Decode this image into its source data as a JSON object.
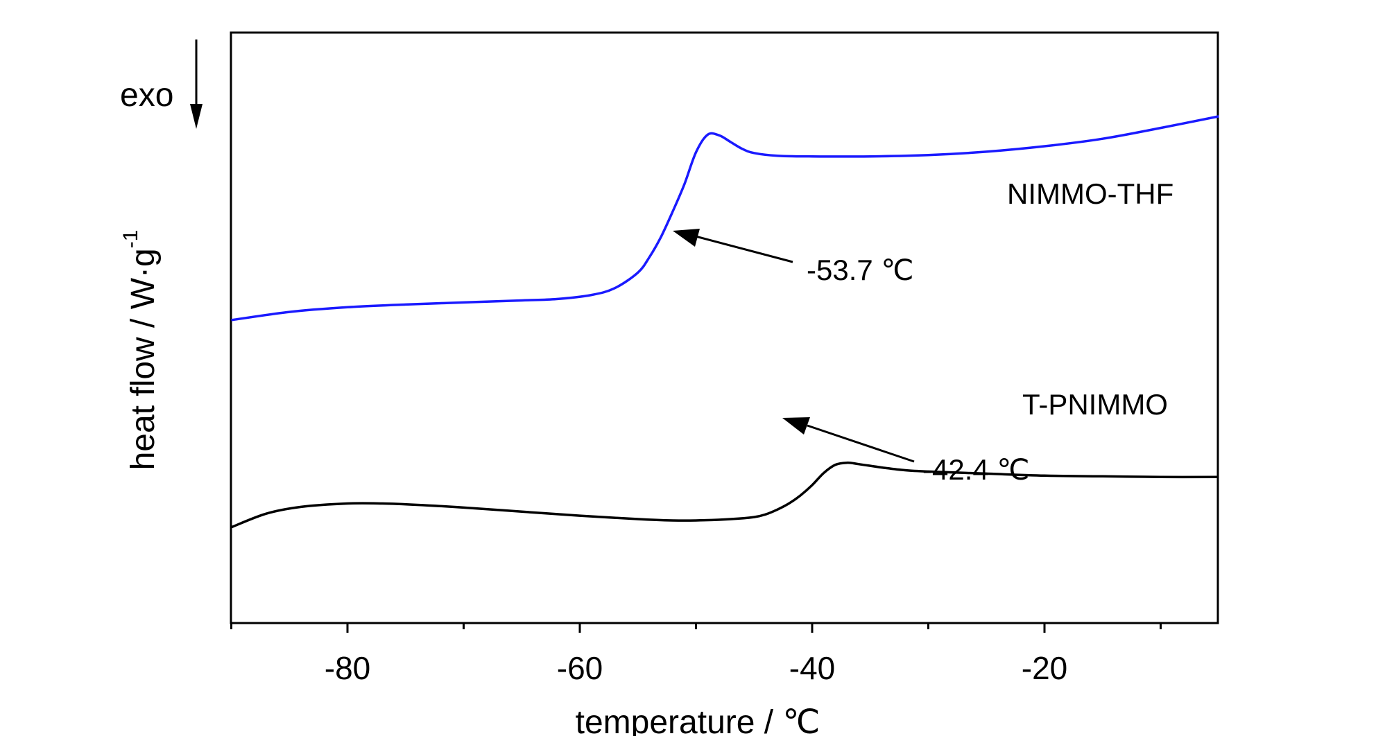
{
  "chart_data": {
    "type": "line",
    "xlabel": "temperature / ℃",
    "ylabel": "heat flow / W·g",
    "ylabel_superscript": "-1",
    "xlim": [
      -90,
      -5
    ],
    "x_ticks": [
      -80,
      -60,
      -40,
      -20
    ],
    "x_tick_labels": [
      "-80",
      "-60",
      "-40",
      "-20"
    ],
    "y_ticks_shown": false,
    "grid": false,
    "direction_label": "exo",
    "series": [
      {
        "name": "NIMMO-THF",
        "color": "#1a1aff",
        "points": [
          [
            -90,
            0.95
          ],
          [
            -85,
            1.07
          ],
          [
            -80,
            1.14
          ],
          [
            -75,
            1.18
          ],
          [
            -70,
            1.21
          ],
          [
            -65,
            1.24
          ],
          [
            -62,
            1.26
          ],
          [
            -59,
            1.32
          ],
          [
            -57,
            1.42
          ],
          [
            -55,
            1.65
          ],
          [
            -54,
            1.88
          ],
          [
            -53,
            2.18
          ],
          [
            -52,
            2.55
          ],
          [
            -51,
            2.95
          ],
          [
            -50,
            3.42
          ],
          [
            -49,
            3.68
          ],
          [
            -48,
            3.67
          ],
          [
            -47,
            3.57
          ],
          [
            -46,
            3.47
          ],
          [
            -45,
            3.41
          ],
          [
            -43,
            3.37
          ],
          [
            -40,
            3.36
          ],
          [
            -35,
            3.36
          ],
          [
            -30,
            3.38
          ],
          [
            -25,
            3.43
          ],
          [
            -20,
            3.51
          ],
          [
            -15,
            3.62
          ],
          [
            -10,
            3.78
          ],
          [
            -5,
            3.95
          ]
        ]
      },
      {
        "name": "T-PNIMMO",
        "color": "#000000",
        "points": [
          [
            -90,
            -2.1
          ],
          [
            -87,
            -1.9
          ],
          [
            -84,
            -1.8
          ],
          [
            -80,
            -1.75
          ],
          [
            -77,
            -1.75
          ],
          [
            -74,
            -1.77
          ],
          [
            -70,
            -1.81
          ],
          [
            -65,
            -1.87
          ],
          [
            -60,
            -1.93
          ],
          [
            -55,
            -1.98
          ],
          [
            -52,
            -2.0
          ],
          [
            -50,
            -2.0
          ],
          [
            -47,
            -1.98
          ],
          [
            -45,
            -1.95
          ],
          [
            -44,
            -1.91
          ],
          [
            -43,
            -1.84
          ],
          [
            -42,
            -1.75
          ],
          [
            -41,
            -1.63
          ],
          [
            -40,
            -1.48
          ],
          [
            -39,
            -1.3
          ],
          [
            -38,
            -1.18
          ],
          [
            -37,
            -1.15
          ],
          [
            -36,
            -1.17
          ],
          [
            -34,
            -1.22
          ],
          [
            -32,
            -1.26
          ],
          [
            -30,
            -1.28
          ],
          [
            -25,
            -1.31
          ],
          [
            -20,
            -1.34
          ],
          [
            -15,
            -1.35
          ],
          [
            -10,
            -1.36
          ],
          [
            -5,
            -1.36
          ]
        ]
      }
    ],
    "annotations": [
      {
        "text": "-53.7 ℃",
        "x": -53.7,
        "series": "NIMMO-THF"
      },
      {
        "text": "-42.4 ℃",
        "x": -42.4,
        "series": "T-PNIMMO"
      }
    ]
  }
}
